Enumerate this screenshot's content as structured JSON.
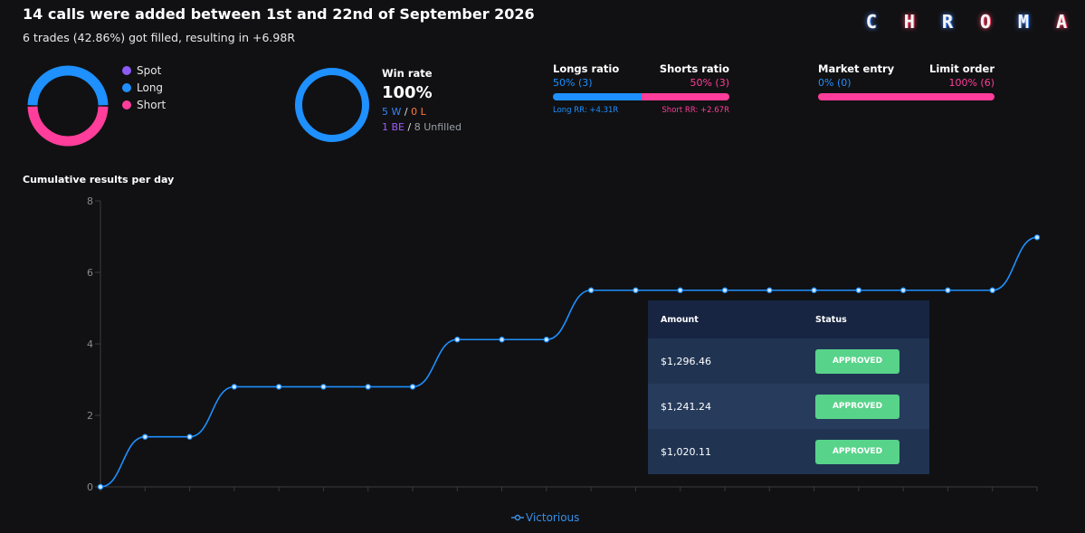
{
  "header": {
    "headline": "14 calls were added between 1st and 22nd of September 2026",
    "subline": "6 trades (42.86%) got filled, resulting in +6.98R",
    "logo_letters": [
      "C",
      "H",
      "R",
      "O",
      "M",
      "A"
    ]
  },
  "breakdown": {
    "legend": [
      {
        "label": "Spot",
        "color": "#8b5cf6"
      },
      {
        "label": "Long",
        "color": "#1e90ff"
      },
      {
        "label": "Short",
        "color": "#ff3d9a"
      }
    ],
    "donut": {
      "spot": 0,
      "long": 50,
      "short": 50
    }
  },
  "winrate": {
    "label": "Win rate",
    "value": "100%",
    "percent": 100,
    "wins": "5 W",
    "sep1": " / ",
    "losses": "0 L",
    "be": "1 BE",
    "sep2": " / ",
    "unfilled": "8 Unfilled",
    "colors": {
      "ring": "#1e90ff",
      "wins": "#3b82f6",
      "losses": "#ff7a3d",
      "be": "#9b5cf6",
      "unfilled": "#9aa0a6"
    }
  },
  "direction_ratio": {
    "left_label": "Longs ratio",
    "right_label": "Shorts ratio",
    "left_value": "50% (3)",
    "right_value": "50% (3)",
    "left_percent": 50,
    "left_rr": "Long RR: +4.31R",
    "right_rr": "Short RR: +2.67R",
    "left_color": "#1e90ff",
    "right_color": "#ff3d9a"
  },
  "entry_ratio": {
    "left_label": "Market entry",
    "right_label": "Limit order",
    "left_value": "0% (0)",
    "right_value": "100% (6)",
    "left_percent": 0,
    "left_color": "#1e90ff",
    "right_color": "#ff3d9a"
  },
  "chart_data": {
    "type": "line",
    "title": "Cumulative results per day",
    "ylim": [
      0,
      8
    ],
    "yticks": [
      0,
      2,
      4,
      6,
      8
    ],
    "x": [
      1,
      2,
      3,
      4,
      5,
      6,
      7,
      8,
      9,
      10,
      11,
      12,
      13,
      14,
      15,
      16,
      17,
      18,
      19,
      20,
      21,
      22
    ],
    "series": [
      {
        "name": "Victorious",
        "color": "#1e90ff",
        "values": [
          0,
          1.4,
          1.4,
          2.8,
          2.8,
          2.8,
          2.8,
          2.8,
          4.12,
          4.12,
          4.12,
          5.5,
          5.5,
          5.5,
          5.5,
          5.5,
          5.5,
          5.5,
          5.5,
          5.5,
          5.5,
          6.98
        ]
      }
    ],
    "grid": false,
    "legend": "bottom"
  },
  "table": {
    "headers": {
      "amount": "Amount",
      "status": "Status"
    },
    "rows": [
      {
        "amount": "$1,296.46",
        "status": "APPROVED"
      },
      {
        "amount": "$1,241.24",
        "status": "APPROVED"
      },
      {
        "amount": "$1,020.11",
        "status": "APPROVED"
      }
    ]
  }
}
